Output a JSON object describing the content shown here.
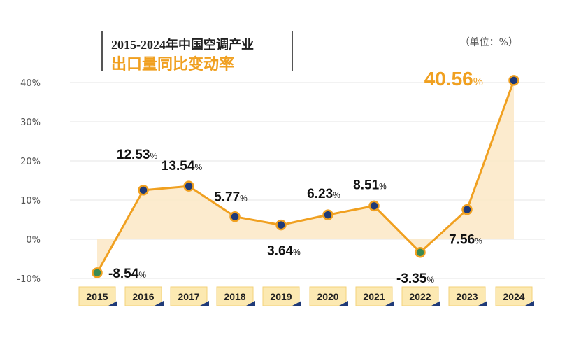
{
  "header": {
    "title_line1": "2015-2024年中国空调产业",
    "title_line2": "出口量同比变动率",
    "unit": "（单位：%）"
  },
  "chart_data": {
    "type": "area",
    "title": "2015-2024年中国空调产业出口量同比变动率",
    "unit": "%",
    "categories": [
      "2015",
      "2016",
      "2017",
      "2018",
      "2019",
      "2020",
      "2021",
      "2022",
      "2023",
      "2024"
    ],
    "values": [
      -8.54,
      12.53,
      13.54,
      5.77,
      3.64,
      6.23,
      8.51,
      -3.35,
      7.56,
      40.56
    ],
    "y_ticks": [
      "-10%",
      "0%",
      "10%",
      "20%",
      "30%",
      "40%"
    ],
    "ylim": [
      -10,
      43
    ],
    "grid": true,
    "colors": {
      "line": "#f0a020",
      "area": "#fbe8c6",
      "marker_positive": "#1f3a78",
      "marker_negative": "#3a8a52",
      "highlight": "#f0a020",
      "label_bg": "#fce9b2"
    }
  }
}
